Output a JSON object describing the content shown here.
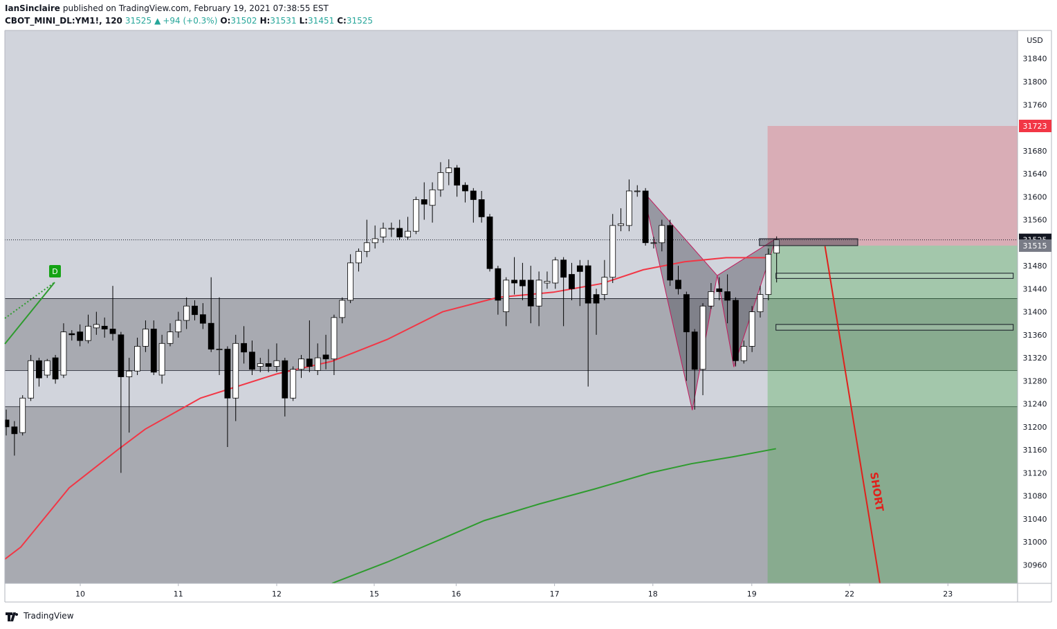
{
  "header": {
    "publisher": "IanSinclaire",
    "published": "published on TradingView.com, February 19, 2021 07:38:55 EST",
    "symbol": "CBOT_MINI_DL:YM1!, 120",
    "last": 31525,
    "arrow": "▲",
    "change": "+94 (+0.3%)",
    "ohlc": [
      {
        "label": "O:",
        "value": 31502
      },
      {
        "label": "H:",
        "value": 31531
      },
      {
        "label": "L:",
        "value": 31451
      },
      {
        "label": "C:",
        "value": 31525
      }
    ]
  },
  "footer": {
    "brand": "TradingView"
  },
  "chart_data": {
    "type": "candlestick",
    "currency": "USD",
    "xlim": [
      -0.17,
      123.4
    ],
    "ylim": [
      30928,
      31889
    ],
    "xticks": [
      {
        "value": 9.03,
        "label": "10"
      },
      {
        "value": 21.0,
        "label": "11"
      },
      {
        "value": 33.0,
        "label": "12"
      },
      {
        "value": 44.9,
        "label": "15"
      },
      {
        "value": 54.9,
        "label": "16"
      },
      {
        "value": 66.9,
        "label": "17"
      },
      {
        "value": 78.9,
        "label": "18"
      },
      {
        "value": 90.97,
        "label": "19"
      },
      {
        "value": 102.9,
        "label": "22"
      },
      {
        "value": 114.9,
        "label": "23"
      }
    ],
    "yticks": [
      30960,
      31000,
      31040,
      31080,
      31120,
      31160,
      31200,
      31240,
      31280,
      31320,
      31360,
      31400,
      31440,
      31480,
      31520,
      31560,
      31600,
      31640,
      31680,
      31720,
      31760,
      31800,
      31840
    ],
    "up_color": "#ffffff",
    "down_color": "#000000",
    "background": "#d1d4dc",
    "zone_color": "#a8aab1",
    "open": [
      31212,
      31200,
      31190,
      31250,
      31315,
      31290,
      31320,
      31290,
      31362,
      31365,
      31350,
      31372,
      31375,
      31370,
      31360,
      31287,
      31297,
      31340,
      31370,
      31290,
      31345,
      31365,
      31385,
      31410,
      31395,
      31380,
      31335,
      31335,
      31250,
      31345,
      31330,
      31305,
      31310,
      31305,
      31315,
      31250,
      31300,
      31318,
      31298,
      31325,
      31318,
      31390,
      31420,
      31485,
      31505,
      31520,
      31530,
      31545,
      31545,
      31530,
      31540,
      31595,
      31585,
      31612,
      31642,
      31650,
      31620,
      31610,
      31595,
      31565,
      31475,
      31400,
      31455,
      31455,
      31455,
      31410,
      31450,
      31450,
      31490,
      31465,
      31480,
      31480,
      31430,
      31430,
      31460,
      31550,
      31550,
      31610,
      31610,
      31520,
      31520,
      31550,
      31455,
      31430,
      31365,
      31300,
      31410,
      31440,
      31435,
      31420,
      31315,
      31340,
      31400,
      31430,
      31502
    ],
    "high": [
      31230,
      31210,
      31255,
      31325,
      31320,
      31318,
      31325,
      31380,
      31368,
      31378,
      31395,
      31400,
      31390,
      31445,
      31365,
      31320,
      31355,
      31385,
      31385,
      31360,
      31380,
      31400,
      31425,
      31420,
      31415,
      31460,
      31425,
      31340,
      31360,
      31375,
      31350,
      31320,
      31335,
      31345,
      31320,
      31305,
      31325,
      31385,
      31345,
      31360,
      31395,
      31425,
      31500,
      31510,
      31560,
      31550,
      31555,
      31555,
      31560,
      31565,
      31600,
      31625,
      31625,
      31660,
      31665,
      31655,
      31625,
      31615,
      31610,
      31570,
      31480,
      31460,
      31495,
      31485,
      31480,
      31470,
      31470,
      31495,
      31495,
      31485,
      31490,
      31490,
      31440,
      31490,
      31570,
      31580,
      31630,
      31620,
      31615,
      31530,
      31560,
      31560,
      31480,
      31435,
      31370,
      31415,
      31450,
      31460,
      31465,
      31425,
      31350,
      31410,
      31445,
      31510,
      31531
    ],
    "low": [
      31185,
      31150,
      31185,
      31245,
      31270,
      31285,
      31275,
      31285,
      31350,
      31340,
      31345,
      31360,
      31355,
      31350,
      31120,
      31190,
      31290,
      31330,
      31290,
      31275,
      31340,
      31355,
      31370,
      31385,
      31370,
      31330,
      31290,
      31165,
      31210,
      31310,
      31290,
      31295,
      31295,
      31295,
      31218,
      31245,
      31285,
      31295,
      31290,
      31300,
      31290,
      31380,
      31415,
      31470,
      31495,
      31510,
      31520,
      31530,
      31525,
      31525,
      31535,
      31560,
      31555,
      31600,
      31620,
      31600,
      31590,
      31555,
      31555,
      31470,
      31395,
      31375,
      31430,
      31420,
      31380,
      31375,
      31440,
      31440,
      31375,
      31420,
      31410,
      31270,
      31360,
      31420,
      31450,
      31540,
      31540,
      31600,
      31515,
      31510,
      31505,
      31445,
      31430,
      31280,
      31230,
      31255,
      31405,
      31420,
      31380,
      31305,
      31310,
      31330,
      31390,
      31420,
      31451
    ],
    "close": [
      31200,
      31188,
      31250,
      31315,
      31285,
      31315,
      31283,
      31365,
      31360,
      31350,
      31375,
      31378,
      31370,
      31362,
      31287,
      31297,
      31340,
      31370,
      31295,
      31345,
      31365,
      31385,
      31410,
      31395,
      31380,
      31335,
      31335,
      31250,
      31345,
      31330,
      31300,
      31310,
      31305,
      31315,
      31250,
      31300,
      31318,
      31305,
      31320,
      31318,
      31390,
      31420,
      31485,
      31505,
      31520,
      31527,
      31545,
      31545,
      31530,
      31540,
      31595,
      31587,
      31612,
      31642,
      31650,
      31620,
      31610,
      31595,
      31565,
      31475,
      31420,
      31455,
      31450,
      31445,
      31410,
      31455,
      31453,
      31490,
      31460,
      31440,
      31470,
      31415,
      31415,
      31460,
      31550,
      31553,
      31610,
      31610,
      31520,
      31520,
      31550,
      31455,
      31440,
      31365,
      31300,
      31410,
      31435,
      31435,
      31420,
      31315,
      31340,
      31400,
      31430,
      31500,
      31525
    ],
    "moving_averages": [
      {
        "color": "#f23645",
        "x": [
          -0.17,
          1.77,
          7.68,
          13.59,
          16.96,
          23.71,
          33.0,
          39.75,
          46.5,
          53.25,
          60.0,
          66.75,
          72.66,
          77.72,
          82.78,
          87.85,
          92.91
        ],
        "values": [
          30970,
          30991,
          31094,
          31160,
          31196,
          31250,
          31292,
          31314,
          31352,
          31400,
          31425,
          31434,
          31449,
          31473,
          31487,
          31494,
          31494
        ]
      },
      {
        "color": "#2e9b2e",
        "x": [
          39.75,
          46.5,
          53.25,
          58.31,
          65.06,
          71.81,
          78.57,
          83.63,
          88.69,
          93.92
        ],
        "values": [
          30928,
          30965,
          31006,
          31037,
          31066,
          31092,
          31120,
          31136,
          31148,
          31162
        ]
      }
    ],
    "levels": [
      31423,
      31298,
      31235
    ],
    "position": {
      "x": [
        92.9,
        123.4
      ],
      "stop": 31723,
      "entry": 31515,
      "target": 30900
    },
    "pattern": {
      "x": [
        77.72,
        83.71,
        86.75,
        88.78,
        93.92
      ],
      "values": [
        31609,
        31229,
        31463,
        31304,
        31527
      ]
    },
    "boxes": [
      {
        "x": [
          91.9,
          103.9
        ],
        "values": [
          31527,
          31515
        ]
      },
      {
        "x": [
          93.92,
          122.87
        ],
        "values": [
          31467,
          31458
        ]
      },
      {
        "x": [
          93.92,
          122.87
        ],
        "values": [
          31378,
          31368
        ]
      }
    ],
    "short_line": {
      "x": [
        99.9,
        106.6
      ],
      "values": [
        31514,
        30928
      ],
      "label": "SHORT"
    },
    "marker": {
      "label": "D"
    },
    "price_labels": [
      {
        "value": 31723,
        "color": "#f23645"
      },
      {
        "value": 31525,
        "color": "#131722"
      },
      {
        "value": 31515,
        "color": "#787b86"
      }
    ]
  }
}
